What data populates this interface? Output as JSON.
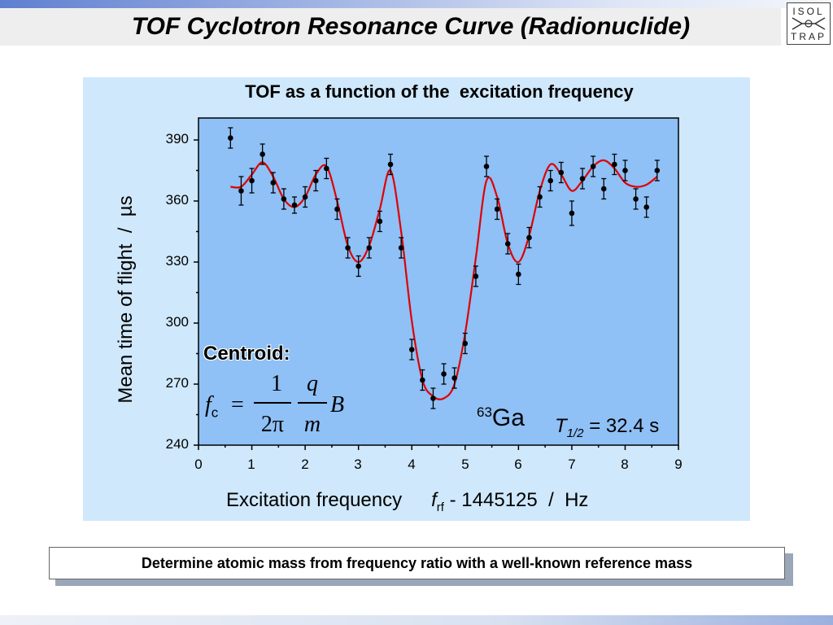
{
  "slide": {
    "title": "TOF Cyclotron Resonance Curve (Radionuclide)",
    "logo_lines": [
      "ISOL",
      "TRAP"
    ],
    "bottom_note": "Determine atomic mass from frequency ratio with a well-known reference mass"
  },
  "colors": {
    "panel_bg": "#cfe8fb",
    "plot_bg": "#8fc0f6",
    "fit_line": "#e00000",
    "points": "#000000"
  },
  "chart_data": {
    "type": "scatter",
    "title": "TOF as a function of the  excitation frequency",
    "xlabel_pre": "Excitation frequency",
    "xlabel_var": "f",
    "xlabel_sub": "rf",
    "xlabel_post": " - 1445125  /  Hz",
    "ylabel": "Mean time of flight  /  µs",
    "xlim": [
      0,
      9
    ],
    "ylim": [
      240,
      395
    ],
    "x_ticks": [
      0,
      1,
      2,
      3,
      4,
      5,
      6,
      7,
      8,
      9
    ],
    "y_ticks": [
      240,
      270,
      300,
      330,
      360,
      390
    ],
    "grid": false,
    "points": [
      {
        "x": 0.6,
        "y": 391,
        "err": 5
      },
      {
        "x": 0.8,
        "y": 365,
        "err": 7
      },
      {
        "x": 1.0,
        "y": 370,
        "err": 6
      },
      {
        "x": 1.2,
        "y": 383,
        "err": 5
      },
      {
        "x": 1.4,
        "y": 369,
        "err": 5
      },
      {
        "x": 1.6,
        "y": 361,
        "err": 5
      },
      {
        "x": 1.8,
        "y": 358,
        "err": 4
      },
      {
        "x": 2.0,
        "y": 362,
        "err": 5
      },
      {
        "x": 2.2,
        "y": 370,
        "err": 5
      },
      {
        "x": 2.4,
        "y": 376,
        "err": 5
      },
      {
        "x": 2.6,
        "y": 356,
        "err": 5
      },
      {
        "x": 2.8,
        "y": 337,
        "err": 5
      },
      {
        "x": 3.0,
        "y": 328,
        "err": 5
      },
      {
        "x": 3.2,
        "y": 337,
        "err": 5
      },
      {
        "x": 3.4,
        "y": 350,
        "err": 5
      },
      {
        "x": 3.6,
        "y": 378,
        "err": 5
      },
      {
        "x": 3.8,
        "y": 337,
        "err": 5
      },
      {
        "x": 4.0,
        "y": 287,
        "err": 5
      },
      {
        "x": 4.2,
        "y": 272,
        "err": 5
      },
      {
        "x": 4.4,
        "y": 263,
        "err": 5
      },
      {
        "x": 4.6,
        "y": 275,
        "err": 5
      },
      {
        "x": 4.8,
        "y": 273,
        "err": 5
      },
      {
        "x": 5.0,
        "y": 290,
        "err": 5
      },
      {
        "x": 5.2,
        "y": 323,
        "err": 5
      },
      {
        "x": 5.4,
        "y": 377,
        "err": 5
      },
      {
        "x": 5.6,
        "y": 356,
        "err": 5
      },
      {
        "x": 5.8,
        "y": 339,
        "err": 5
      },
      {
        "x": 6.0,
        "y": 324,
        "err": 5
      },
      {
        "x": 6.2,
        "y": 342,
        "err": 5
      },
      {
        "x": 6.4,
        "y": 362,
        "err": 5
      },
      {
        "x": 6.6,
        "y": 370,
        "err": 5
      },
      {
        "x": 6.8,
        "y": 374,
        "err": 5
      },
      {
        "x": 7.0,
        "y": 354,
        "err": 6
      },
      {
        "x": 7.2,
        "y": 371,
        "err": 5
      },
      {
        "x": 7.4,
        "y": 377,
        "err": 5
      },
      {
        "x": 7.6,
        "y": 366,
        "err": 5
      },
      {
        "x": 7.8,
        "y": 378,
        "err": 5
      },
      {
        "x": 8.0,
        "y": 375,
        "err": 5
      },
      {
        "x": 8.2,
        "y": 361,
        "err": 5
      },
      {
        "x": 8.4,
        "y": 357,
        "err": 5
      },
      {
        "x": 8.6,
        "y": 375,
        "err": 5
      }
    ],
    "fit_curve": {
      "x": [
        0.6,
        0.8,
        1.0,
        1.2,
        1.4,
        1.6,
        1.8,
        2.0,
        2.2,
        2.4,
        2.6,
        2.8,
        3.0,
        3.2,
        3.4,
        3.6,
        3.8,
        4.0,
        4.2,
        4.4,
        4.6,
        4.8,
        5.0,
        5.2,
        5.4,
        5.6,
        5.8,
        6.0,
        6.2,
        6.4,
        6.6,
        6.8,
        7.0,
        7.2,
        7.4,
        7.6,
        7.8,
        8.0,
        8.2,
        8.4,
        8.6
      ],
      "y": [
        367,
        367,
        373,
        379,
        372,
        361,
        357,
        362,
        373,
        377,
        360,
        338,
        330,
        338,
        356,
        375,
        345,
        301,
        272,
        264,
        263,
        270,
        295,
        332,
        370,
        362,
        339,
        330,
        343,
        365,
        378,
        373,
        365,
        370,
        377,
        380,
        376,
        369,
        367,
        368,
        372
      ]
    },
    "annotations": {
      "centroid_label": "Centroid:",
      "formula_f": "f",
      "formula_sub": "c",
      "formula_eq": "=",
      "formula_num1": "1",
      "formula_den1": "2π",
      "formula_num2": "q",
      "formula_den2": "m",
      "formula_B": "B",
      "isotope_mass": "63",
      "isotope_symbol": "Ga",
      "halflife_var": "T",
      "halflife_sub": "1/2",
      "halflife_value": " = 32.4 s"
    }
  }
}
